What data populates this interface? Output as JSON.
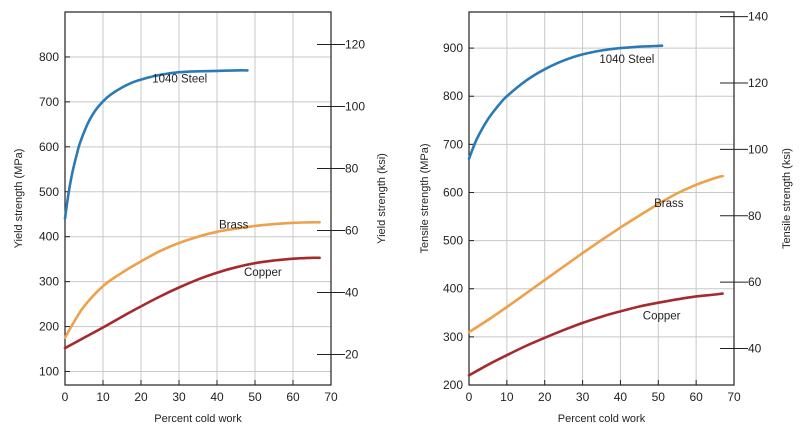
{
  "chart_data": [
    {
      "type": "line",
      "title": "",
      "xlabel": "Percent cold work",
      "ylabel": "Yield strength (MPa)",
      "y2label": "Yield strength (ksi)",
      "xlim": [
        0,
        70
      ],
      "ylim": [
        70,
        900
      ],
      "y2lim": [
        10.15,
        130.5
      ],
      "xticks": [
        "0",
        "10",
        "20",
        "30",
        "40",
        "50",
        "60",
        "70"
      ],
      "yticks": [
        "100",
        "200",
        "300",
        "400",
        "500",
        "600",
        "700",
        "800"
      ],
      "y2ticks": [
        "20",
        "40",
        "60",
        "80",
        "100",
        "120"
      ],
      "grid": true,
      "series": [
        {
          "name": "1040 Steel",
          "color": "#2a7bb5",
          "x": [
            0,
            1,
            2,
            3,
            4,
            6,
            8,
            10,
            12,
            15,
            18,
            21,
            25,
            30,
            35,
            40,
            45,
            48
          ],
          "y": [
            440,
            500,
            545,
            580,
            610,
            652,
            681,
            701,
            716,
            732,
            744,
            752,
            760,
            766,
            768,
            769,
            770,
            770
          ]
        },
        {
          "name": "Brass",
          "color": "#eea04a",
          "x": [
            0,
            2,
            5,
            10,
            15,
            20,
            25,
            30,
            35,
            40,
            45,
            50,
            55,
            60,
            65,
            67
          ],
          "y": [
            175,
            205,
            245,
            290,
            320,
            345,
            368,
            386,
            400,
            411,
            418,
            424,
            428,
            431,
            432,
            432
          ]
        },
        {
          "name": "Copper",
          "color": "#a52a2e",
          "x": [
            0,
            5,
            10,
            15,
            20,
            25,
            30,
            35,
            40,
            45,
            50,
            55,
            60,
            65,
            67
          ],
          "y": [
            152,
            175,
            198,
            222,
            245,
            267,
            287,
            305,
            320,
            332,
            341,
            347,
            351,
            353,
            353
          ]
        }
      ]
    },
    {
      "type": "line",
      "title": "",
      "xlabel": "Percent cold work",
      "ylabel": "Tensile strength (MPa)",
      "y2label": "Tensile strength (ksi)",
      "xlim": [
        0,
        70
      ],
      "ylim": [
        200,
        975
      ],
      "y2lim": [
        29,
        141.4
      ],
      "xticks": [
        "0",
        "10",
        "20",
        "30",
        "40",
        "50",
        "60",
        "70"
      ],
      "yticks": [
        "200",
        "300",
        "400",
        "500",
        "600",
        "700",
        "800",
        "900"
      ],
      "y2ticks": [
        "40",
        "60",
        "80",
        "100",
        "120",
        "140"
      ],
      "grid": true,
      "series": [
        {
          "name": "1040 Steel",
          "color": "#2a7bb5",
          "x": [
            0,
            2,
            5,
            8,
            10,
            15,
            20,
            25,
            30,
            35,
            40,
            45,
            51
          ],
          "y": [
            670,
            710,
            752,
            783,
            800,
            832,
            856,
            874,
            887,
            895,
            900,
            903,
            905
          ]
        },
        {
          "name": "Brass",
          "color": "#eea04a",
          "x": [
            0,
            5,
            10,
            15,
            20,
            25,
            30,
            35,
            40,
            45,
            50,
            55,
            60,
            65,
            67
          ],
          "y": [
            310,
            335,
            362,
            390,
            418,
            446,
            474,
            501,
            527,
            552,
            576,
            598,
            616,
            630,
            634
          ]
        },
        {
          "name": "Copper",
          "color": "#a52a2e",
          "x": [
            0,
            5,
            10,
            15,
            20,
            25,
            30,
            35,
            40,
            45,
            50,
            55,
            60,
            65,
            67
          ],
          "y": [
            220,
            242,
            262,
            281,
            298,
            314,
            329,
            342,
            353,
            363,
            371,
            378,
            384,
            388,
            390
          ]
        }
      ]
    }
  ]
}
